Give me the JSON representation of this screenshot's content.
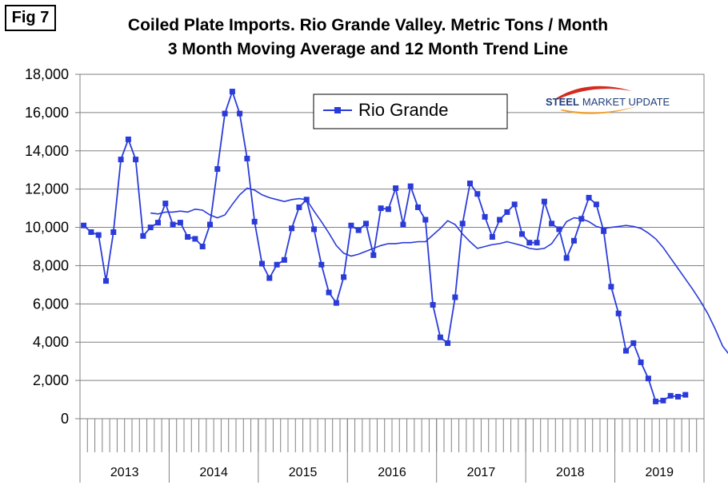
{
  "figure": {
    "label": "Fig 7"
  },
  "chart_data": {
    "type": "line",
    "title": "Coiled Plate Imports. Rio Grande Valley. Metric Tons / Month",
    "subtitle": "3 Month Moving Average and 12 Month Trend Line",
    "xlabel": "",
    "ylabel": "",
    "ylim": [
      0,
      18000
    ],
    "y_ticks": [
      0,
      2000,
      4000,
      6000,
      8000,
      10000,
      12000,
      14000,
      16000,
      18000
    ],
    "y_tick_labels": [
      "0",
      "2,000",
      "4,000",
      "6,000",
      "8,000",
      "10,000",
      "12,000",
      "14,000",
      "16,000",
      "18,000"
    ],
    "years": [
      "2013",
      "2014",
      "2015",
      "2016",
      "2017",
      "2018",
      "2019"
    ],
    "grid": true,
    "legend_position": "top-center",
    "series": [
      {
        "name": "Rio Grande",
        "color": "#2a3bd9",
        "marker": "square",
        "values": [
          10100,
          9750,
          9600,
          7200,
          9750,
          13550,
          14600,
          13550,
          9550,
          10000,
          10250,
          11250,
          10150,
          10250,
          9500,
          9400,
          9000,
          10150,
          13050,
          15950,
          17100,
          15950,
          13600,
          10300,
          8100,
          7350,
          8050,
          8300,
          9950,
          11050,
          11450,
          9900,
          8050,
          6600,
          6050,
          7400,
          10100,
          9850,
          10200,
          8550,
          11000,
          10950,
          12050,
          10150,
          12150,
          11050,
          10400,
          5950,
          4250,
          3950,
          6350,
          10200,
          12300,
          11750,
          10550,
          9500,
          10400,
          10800,
          11200,
          9650,
          9200,
          9200,
          11350,
          10200,
          9900,
          8400,
          9300,
          10450,
          11550,
          11200,
          9800,
          6900,
          5500,
          3550,
          3950,
          2950,
          2100,
          900,
          950,
          1200,
          1150,
          1250
        ]
      },
      {
        "name": "12 Month Trend Line",
        "color": "#2a3bd9",
        "marker": "none",
        "start_index": 9,
        "values": [
          10750,
          10700,
          10800,
          10800,
          10850,
          10800,
          10950,
          10900,
          10650,
          10500,
          10650,
          11200,
          11700,
          12050,
          11950,
          11700,
          11550,
          11450,
          11350,
          11450,
          11500,
          11450,
          10850,
          10300,
          9700,
          9050,
          8650,
          8500,
          8600,
          8750,
          8900,
          9050,
          9150,
          9150,
          9200,
          9200,
          9250,
          9250,
          9600,
          9950,
          10350,
          10150,
          9650,
          9250,
          8900,
          9000,
          9100,
          9150,
          9250,
          9150,
          9050,
          8900,
          8850,
          8900,
          9150,
          9700,
          10300,
          10500,
          10450,
          10300,
          10050,
          9950,
          10000,
          10050,
          10100,
          10050,
          9950,
          9700,
          9400,
          8950,
          8400,
          7850,
          7300,
          6750,
          6150,
          5500,
          4700,
          3800,
          3300
        ]
      }
    ]
  },
  "logo": {
    "steel": "STEEL",
    "rest": "MARKET UPDATE"
  }
}
